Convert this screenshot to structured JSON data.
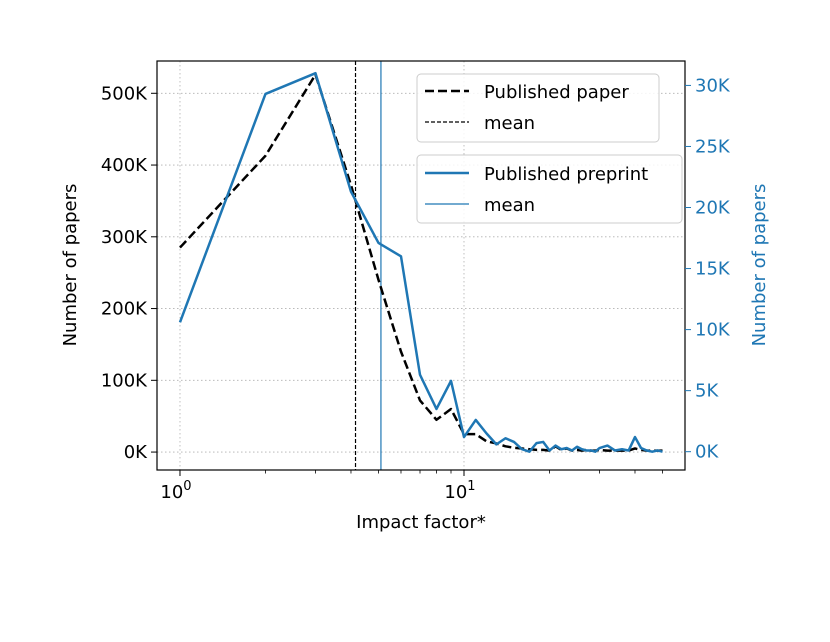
{
  "chart_data": {
    "type": "line",
    "title": "",
    "xlabel": "Impact factor*",
    "x_scale": "log",
    "xlim": [
      0.83,
      60
    ],
    "x_tick_labels": [
      {
        "value": 1,
        "base": "10",
        "exp": "0"
      },
      {
        "value": 10,
        "base": "10",
        "exp": "1"
      }
    ],
    "grid": true,
    "axes": {
      "left": {
        "label": "Number of papers",
        "ylim": [
          -25000,
          545000
        ],
        "ticks": [
          0,
          100000,
          200000,
          300000,
          400000,
          500000
        ],
        "tick_labels": [
          "0K",
          "100K",
          "200K",
          "300K",
          "400K",
          "500K"
        ],
        "color": "#000000"
      },
      "right": {
        "label": "Number of papers",
        "ylim": [
          -1500,
          32000
        ],
        "ticks": [
          0,
          5000,
          10000,
          15000,
          20000,
          25000,
          30000
        ],
        "tick_labels": [
          "0K",
          "5K",
          "10K",
          "15K",
          "20K",
          "25K",
          "30K"
        ],
        "color": "#1f77b4"
      }
    },
    "series": [
      {
        "name": "Published paper",
        "axis": "left",
        "color": "#000000",
        "style": "dashed",
        "x": [
          1,
          2,
          3,
          4,
          5,
          6,
          7,
          8,
          9,
          10,
          11,
          12,
          13,
          14,
          15,
          16,
          17,
          18,
          19,
          20,
          21,
          22,
          23,
          24,
          25,
          26,
          27,
          28,
          29,
          30,
          32,
          34,
          36,
          38,
          40,
          42,
          44,
          46,
          48,
          50
        ],
        "values": [
          285000,
          413000,
          526000,
          372000,
          240000,
          140000,
          72000,
          45000,
          60000,
          25000,
          25000,
          15000,
          12000,
          8000,
          6000,
          5000,
          4000,
          3000,
          3000,
          2000,
          8000,
          3000,
          5000,
          2000,
          3000,
          2000,
          3000,
          2000,
          2000,
          3000,
          2000,
          2000,
          2000,
          2000,
          5000,
          3000,
          2000,
          2000,
          2000,
          2000
        ]
      },
      {
        "name": "Published preprint",
        "axis": "right",
        "color": "#1f77b4",
        "style": "solid",
        "x": [
          1,
          2,
          3,
          4,
          5,
          6,
          7,
          8,
          9,
          10,
          11,
          12,
          13,
          14,
          15,
          16,
          17,
          18,
          19,
          20,
          21,
          22,
          23,
          24,
          25,
          26,
          27,
          28,
          29,
          30,
          32,
          34,
          36,
          38,
          40,
          42,
          44,
          46,
          48,
          50
        ],
        "values": [
          10600,
          29300,
          31000,
          21300,
          17100,
          16000,
          6300,
          3500,
          5800,
          1200,
          2600,
          1500,
          600,
          1100,
          800,
          200,
          0,
          700,
          800,
          100,
          500,
          200,
          300,
          100,
          400,
          200,
          100,
          100,
          0,
          300,
          500,
          100,
          200,
          100,
          1200,
          300,
          100,
          0,
          100,
          0
        ]
      },
      {
        "name": "mean",
        "axis": "left",
        "kind": "vline",
        "color": "#000000",
        "style": "dashed",
        "x": 4.15
      },
      {
        "name": "mean",
        "axis": "right",
        "kind": "vline",
        "color": "#1f77b4",
        "style": "solid",
        "x": 5.1
      }
    ],
    "legends": [
      {
        "placement": "upper-right",
        "entries": [
          "Published paper",
          "mean"
        ]
      },
      {
        "placement": "upper-right-below",
        "entries": [
          "Published preprint",
          "mean"
        ]
      }
    ]
  }
}
